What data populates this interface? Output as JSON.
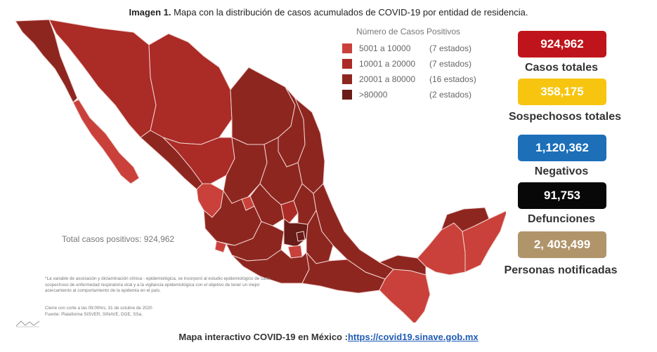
{
  "title": {
    "bold": "Imagen 1.",
    "text": "Mapa con la distribución de casos acumulados de COVID-19 por entidad de residencia."
  },
  "legend": {
    "title": "Número de Casos Positivos",
    "items": [
      {
        "range": "5001 a  10000",
        "count": "(7 estados)",
        "color": "#c9413a"
      },
      {
        "range": "10001 a  20000",
        "count": "(7 estados)",
        "color": "#ab2b26"
      },
      {
        "range": "20001 a  80000",
        "count": "(16 estados)",
        "color": "#8e2620"
      },
      {
        "range": ">80000",
        "count": "(2 estados)",
        "color": "#6a1c18"
      }
    ]
  },
  "stats": [
    {
      "value": "924,962",
      "label": "Casos totales",
      "color": "#c0141c"
    },
    {
      "value": "358,175",
      "label": "Sospechosos totales",
      "color": "#f7c510"
    },
    {
      "value": "1,120,362",
      "label": "Negativos",
      "color": "#1d6fb8"
    },
    {
      "value": "91,753",
      "label": "Defunciones",
      "color": "#080808"
    },
    {
      "value": "2, 403,499",
      "label": "Personas notificadas",
      "color": "#b0946a"
    }
  ],
  "total_positive": "Total casos positivos: 924,962",
  "footnote": "*La variable de asociación y dictaminación clínica - epidemiológica, se incorporó al estudio epidemiológico de caso sospechoso de enfermedad respiratoria viral y a la vigilancia epidemiológica con el objetivo de tener un mejor acercamiento al comportamiento de la epidemia en el país.",
  "cutoff": "Cierre con corte a las 09:00hrs, 31 de octubre de 2020",
  "source": "Fuente: Plataforma SISVER, SINAVE, DGE, SSa.",
  "bottom": {
    "text": "Mapa interactivo COVID-19 en México :",
    "link": "https://covid19.sinave.gob.mx"
  }
}
